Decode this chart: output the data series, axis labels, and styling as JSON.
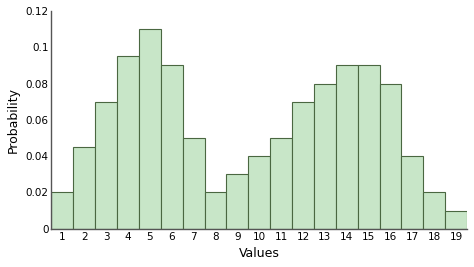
{
  "categories": [
    1,
    2,
    3,
    4,
    5,
    6,
    7,
    8,
    9,
    10,
    11,
    12,
    13,
    14,
    15,
    16,
    17,
    18,
    19
  ],
  "values": [
    0.02,
    0.045,
    0.07,
    0.095,
    0.11,
    0.09,
    0.05,
    0.02,
    0.03,
    0.04,
    0.05,
    0.07,
    0.08,
    0.09,
    0.09,
    0.08,
    0.04,
    0.02,
    0.01
  ],
  "bar_color": "#c8e6c8",
  "bar_edge_color": "#4a6741",
  "xlabel": "Values",
  "ylabel": "Probability",
  "ylim": [
    0,
    0.12
  ],
  "yticks": [
    0,
    0.02,
    0.04,
    0.06,
    0.08,
    0.1,
    0.12
  ],
  "background_color": "#ffffff",
  "bar_width": 1.0
}
